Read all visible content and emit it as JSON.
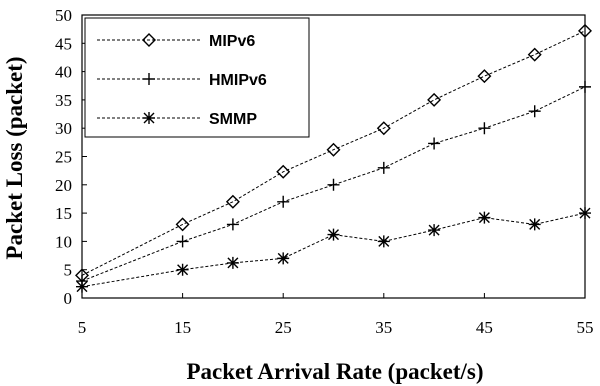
{
  "chart_data": {
    "type": "line",
    "xlabel": "Packet Arrival Rate (packet/s)",
    "ylabel": "Packet Loss (packet)",
    "xlim": [
      5,
      55
    ],
    "ylim": [
      0,
      50
    ],
    "xticks": [
      5,
      15,
      25,
      35,
      45,
      55
    ],
    "yticks": [
      0,
      5,
      10,
      15,
      20,
      25,
      30,
      35,
      40,
      45,
      50
    ],
    "legend_position": "top-left",
    "x": [
      5,
      15,
      20,
      25,
      30,
      35,
      40,
      45,
      50,
      55
    ],
    "series": [
      {
        "name": "MIPv6",
        "marker": "diamond",
        "values": [
          4,
          13,
          17,
          22.3,
          26.2,
          30,
          35,
          39.2,
          43,
          47.2
        ]
      },
      {
        "name": "HMIPv6",
        "marker": "plus",
        "values": [
          3,
          10,
          13,
          17,
          20,
          23,
          27.3,
          30,
          33,
          37.3
        ]
      },
      {
        "name": "SMMP",
        "marker": "asterisk",
        "values": [
          2,
          5,
          6.2,
          7,
          11.2,
          10,
          12,
          14.2,
          13,
          15
        ]
      }
    ]
  }
}
